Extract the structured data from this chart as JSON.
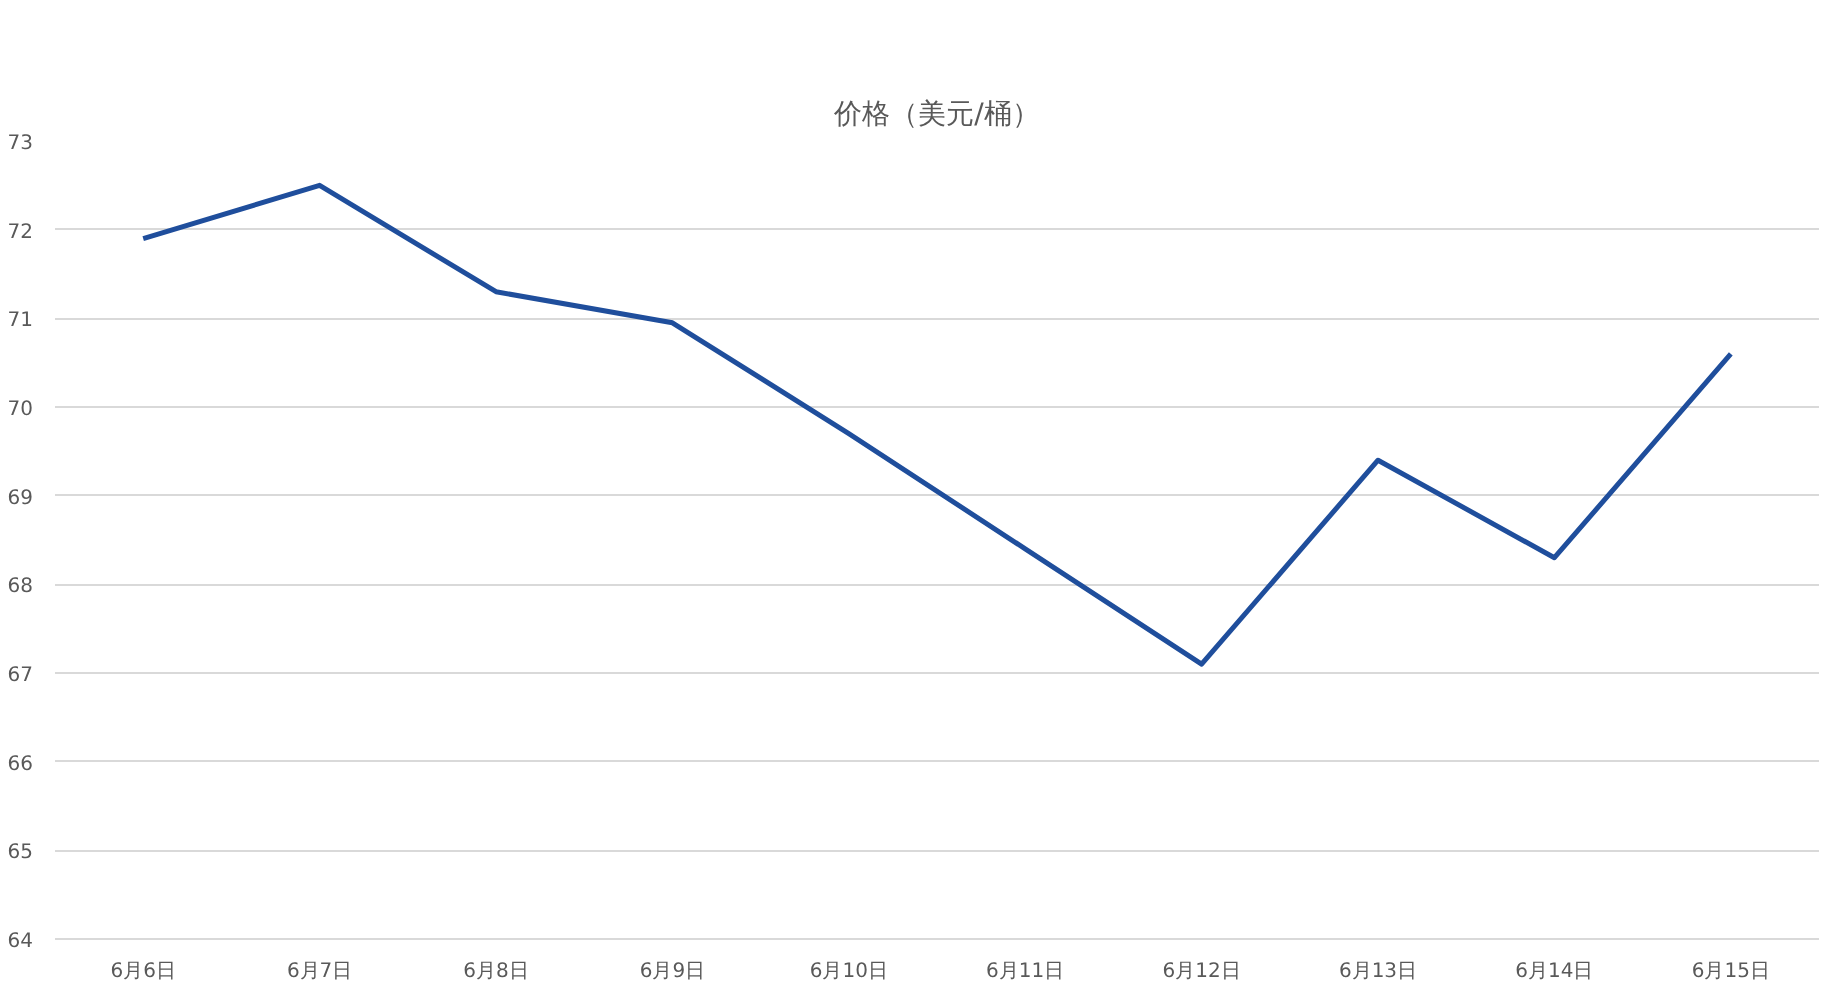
{
  "chart_data": {
    "type": "line",
    "title": "价格（美元/桶）",
    "categories": [
      "6月6日",
      "6月7日",
      "6月8日",
      "6月9日",
      "6月10日",
      "6月11日",
      "6月12日",
      "6月13日",
      "6月14日",
      "6月15日"
    ],
    "series": [
      {
        "color": "#1f4e9c",
        "values": [
          71.9,
          72.5,
          71.3,
          70.95,
          69.7,
          68.4,
          67.1,
          69.4,
          68.3,
          70.6
        ]
      }
    ],
    "ylim": [
      64,
      73
    ],
    "yticks": [
      64,
      65,
      66,
      67,
      68,
      69,
      70,
      71,
      72,
      73
    ],
    "grid": "y",
    "marker": "none",
    "line_style": "solid"
  }
}
